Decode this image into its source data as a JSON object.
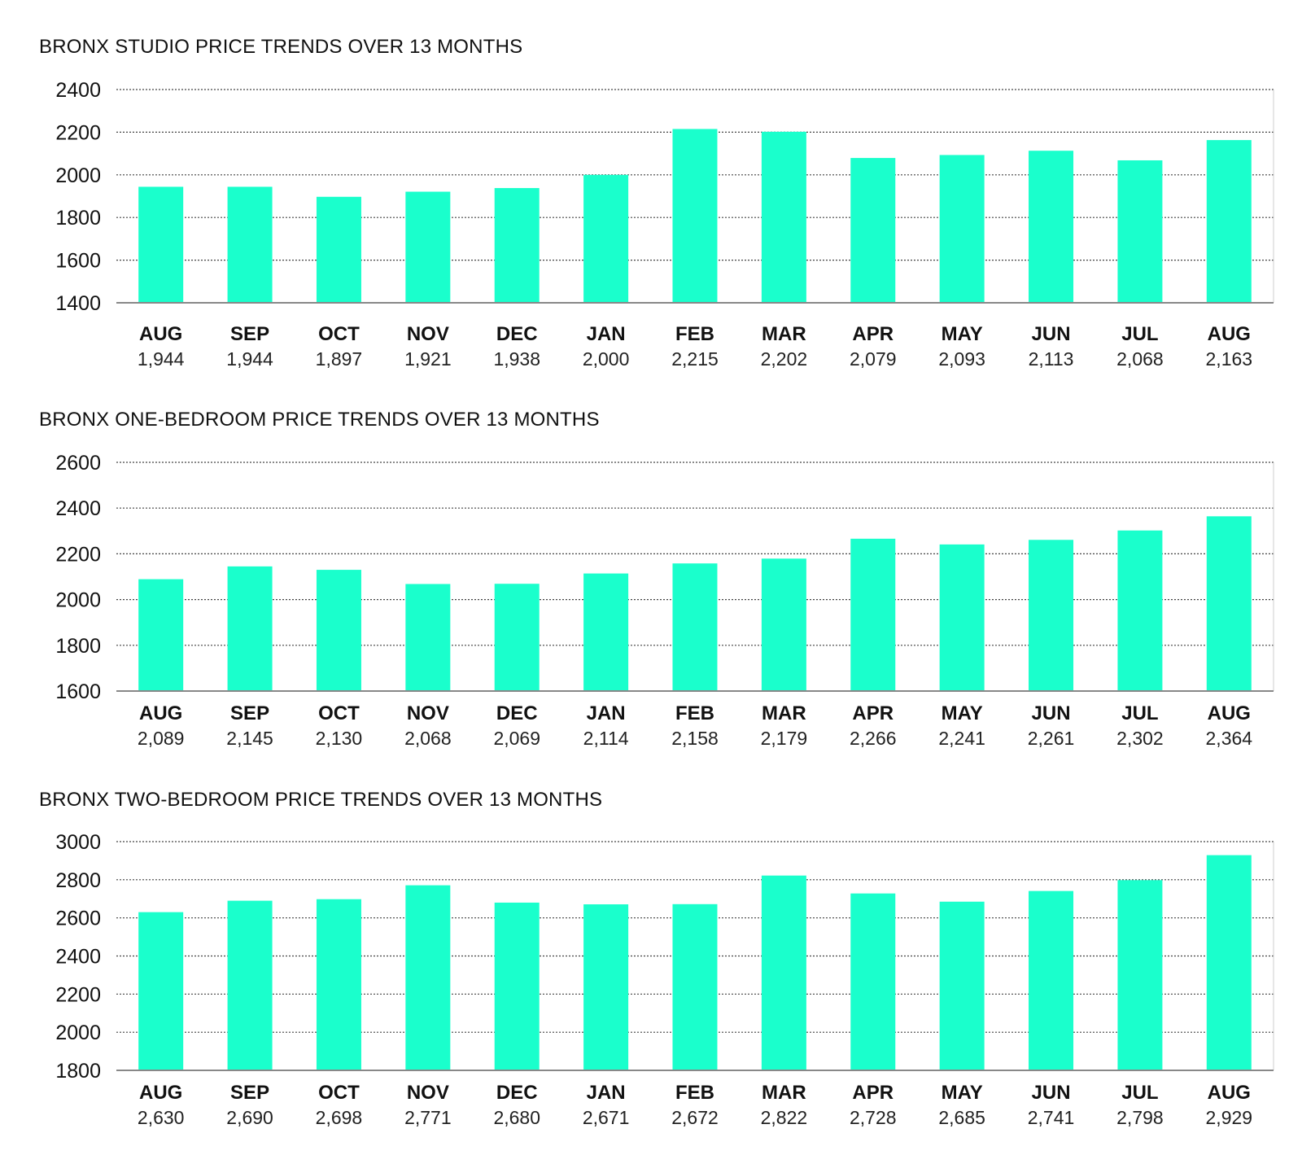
{
  "colors": {
    "bar": "#1AFFCC",
    "text": "#111111",
    "grid": "#444444"
  },
  "chart_data": [
    {
      "type": "bar",
      "title": "BRONX STUDIO PRICE TRENDS OVER 13 MONTHS",
      "categories": [
        "AUG",
        "SEP",
        "OCT",
        "NOV",
        "DEC",
        "JAN",
        "FEB",
        "MAR",
        "APR",
        "MAY",
        "JUN",
        "JUL",
        "AUG"
      ],
      "values": [
        1944,
        1944,
        1897,
        1921,
        1938,
        2000,
        2215,
        2202,
        2079,
        2093,
        2113,
        2068,
        2163
      ],
      "value_labels": [
        "1,944",
        "1,944",
        "1,897",
        "1,921",
        "1,938",
        "2,000",
        "2,215",
        "2,202",
        "2,079",
        "2,093",
        "2,113",
        "2,068",
        "2,163"
      ],
      "ylim": [
        1400,
        2400
      ],
      "yticks": [
        1400,
        1600,
        1800,
        2000,
        2200,
        2400
      ],
      "xlabel": "",
      "ylabel": "",
      "grid": true
    },
    {
      "type": "bar",
      "title": "BRONX ONE-BEDROOM PRICE TRENDS OVER 13 MONTHS",
      "categories": [
        "AUG",
        "SEP",
        "OCT",
        "NOV",
        "DEC",
        "JAN",
        "FEB",
        "MAR",
        "APR",
        "MAY",
        "JUN",
        "JUL",
        "AUG"
      ],
      "values": [
        2089,
        2145,
        2130,
        2068,
        2069,
        2114,
        2158,
        2179,
        2266,
        2241,
        2261,
        2302,
        2364
      ],
      "value_labels": [
        "2,089",
        "2,145",
        "2,130",
        "2,068",
        "2,069",
        "2,114",
        "2,158",
        "2,179",
        "2,266",
        "2,241",
        "2,261",
        "2,302",
        "2,364"
      ],
      "ylim": [
        1600,
        2600
      ],
      "yticks": [
        1600,
        1800,
        2000,
        2200,
        2400,
        2600
      ],
      "xlabel": "",
      "ylabel": "",
      "grid": true
    },
    {
      "type": "bar",
      "title": "BRONX TWO-BEDROOM PRICE TRENDS OVER 13 MONTHS",
      "categories": [
        "AUG",
        "SEP",
        "OCT",
        "NOV",
        "DEC",
        "JAN",
        "FEB",
        "MAR",
        "APR",
        "MAY",
        "JUN",
        "JUL",
        "AUG"
      ],
      "values": [
        2630,
        2690,
        2698,
        2771,
        2680,
        2671,
        2672,
        2822,
        2728,
        2685,
        2741,
        2798,
        2929
      ],
      "value_labels": [
        "2,630",
        "2,690",
        "2,698",
        "2,771",
        "2,680",
        "2,671",
        "2,672",
        "2,822",
        "2,728",
        "2,685",
        "2,741",
        "2,798",
        "2,929"
      ],
      "ylim": [
        1800,
        3000
      ],
      "yticks": [
        1800,
        2000,
        2200,
        2400,
        2600,
        2800,
        3000
      ],
      "xlabel": "",
      "ylabel": "",
      "grid": true
    }
  ]
}
